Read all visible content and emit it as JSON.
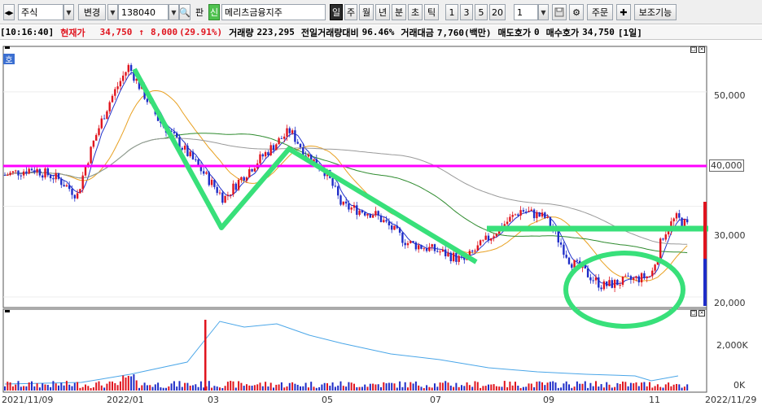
{
  "toolbar": {
    "market_type": "주식",
    "change_label": "변경",
    "code": "138040",
    "pan_label": "판",
    "credit_badge": "신",
    "stock_name": "메리츠금융지주",
    "periods": [
      "일",
      "주",
      "월",
      "년",
      "분",
      "초",
      "틱"
    ],
    "active_period": "일",
    "intervals": [
      "1",
      "3",
      "5",
      "20"
    ],
    "interval_value": "1",
    "order_label": "주문",
    "aux_label": "보조기능",
    "save_icon": "save-icon",
    "settings_icon": "gear-icon",
    "cross_icon": "crosshair-icon"
  },
  "status": {
    "time": "[10:16:40]",
    "price_label": "현재가",
    "price": "34,750",
    "arrow": "↑",
    "change": "8,000",
    "change_pct": "(29.91%)",
    "volume_label": "거래량",
    "volume": "223,295",
    "prev_vol_label": "전일거래량대비",
    "prev_vol": "96.46%",
    "amount_label": "거래대금",
    "amount": "7,760(백만)",
    "ask_label": "매도호가",
    "ask": "0",
    "bid_label": "매수호가",
    "bid": "34,750",
    "period": "[1일]"
  },
  "chart": {
    "price_badge": "호",
    "horizontal_line_label": "40,000",
    "y_ticks": [
      "50,000",
      "30,000",
      "20,000"
    ],
    "vol_ticks": [
      "2,000K",
      "0K"
    ],
    "x_ticks": [
      "2021/11/09",
      "2022/01",
      "03",
      "05",
      "07",
      "09",
      "11",
      "2022/11/29"
    ],
    "colors": {
      "up": "#e0141e",
      "down": "#1f2dc8",
      "hline": "#ff00ff",
      "annotation": "#38e07a",
      "ma5": "#2233cc",
      "ma20": "#e8a020",
      "ma60": "#2e8b2e",
      "ma120": "#9a9a9a",
      "vol_line": "#4aa6e8"
    }
  }
}
